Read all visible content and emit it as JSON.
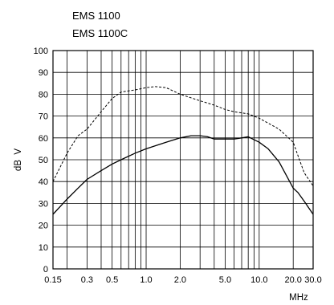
{
  "chart_data": {
    "type": "line",
    "title_lines": [
      "EMS 1100",
      "EMS 1100C"
    ],
    "ylabel": "dB  V",
    "xlabel": "MHz",
    "x_scale": "log",
    "xlim": [
      0.15,
      30.0
    ],
    "ylim": [
      0,
      100
    ],
    "grid": true,
    "y_ticks": [
      0,
      10,
      20,
      30,
      40,
      50,
      60,
      70,
      80,
      90,
      100
    ],
    "x_tick_labels": [
      {
        "value": 0.15,
        "label": "0.15"
      },
      {
        "value": 0.3,
        "label": "0.3"
      },
      {
        "value": 0.5,
        "label": "0.5"
      },
      {
        "value": 1.0,
        "label": "1.0"
      },
      {
        "value": 2.0,
        "label": "2.0"
      },
      {
        "value": 5.0,
        "label": "5.0"
      },
      {
        "value": 10.0,
        "label": "10.0"
      },
      {
        "value": 20.0,
        "label": "20.0"
      },
      {
        "value": 30.0,
        "label": "30.0"
      }
    ],
    "x_gridlines": [
      0.15,
      0.2,
      0.3,
      0.4,
      0.5,
      0.6,
      0.7,
      0.8,
      0.9,
      1.0,
      2.0,
      3.0,
      4.0,
      5.0,
      6.0,
      7.0,
      8.0,
      9.0,
      10.0,
      20.0,
      30.0
    ],
    "series": [
      {
        "style": "solid",
        "x": [
          0.15,
          0.2,
          0.25,
          0.3,
          0.4,
          0.5,
          0.6,
          0.8,
          1.0,
          1.5,
          2.0,
          2.5,
          3.0,
          3.5,
          4.0,
          5.0,
          6.0,
          7.0,
          8.0,
          10.0,
          12.0,
          15.0,
          20.0,
          22.0,
          25.0,
          30.0
        ],
        "y": [
          25,
          32,
          37,
          41,
          45,
          48,
          50,
          53,
          55,
          58,
          60,
          61,
          61,
          60.5,
          59.5,
          59.5,
          59.5,
          60,
          60.5,
          58,
          55,
          49,
          37,
          35,
          31,
          25
        ]
      },
      {
        "style": "dashed",
        "x": [
          0.15,
          0.2,
          0.25,
          0.3,
          0.4,
          0.5,
          0.6,
          0.8,
          1.0,
          1.2,
          1.5,
          2.0,
          3.0,
          4.0,
          5.0,
          6.0,
          8.0,
          10.0,
          15.0,
          20.0,
          22.0,
          25.0,
          30.0
        ],
        "y": [
          40,
          53,
          61,
          64,
          72,
          78,
          81,
          82,
          83,
          83.5,
          83,
          80,
          77,
          75,
          73,
          72,
          71,
          69,
          64,
          58,
          52,
          44,
          38
        ]
      }
    ]
  }
}
